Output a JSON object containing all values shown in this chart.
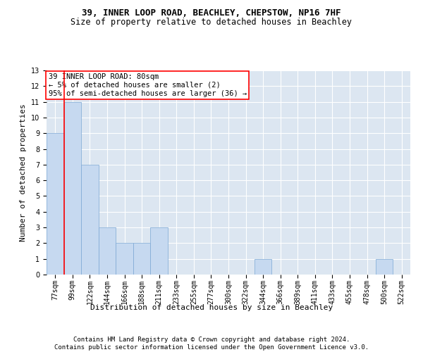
{
  "title1": "39, INNER LOOP ROAD, BEACHLEY, CHEPSTOW, NP16 7HF",
  "title2": "Size of property relative to detached houses in Beachley",
  "xlabel": "Distribution of detached houses by size in Beachley",
  "ylabel": "Number of detached properties",
  "categories": [
    "77sqm",
    "99sqm",
    "122sqm",
    "144sqm",
    "166sqm",
    "188sqm",
    "211sqm",
    "233sqm",
    "255sqm",
    "277sqm",
    "300sqm",
    "322sqm",
    "344sqm",
    "366sqm",
    "389sqm",
    "411sqm",
    "433sqm",
    "455sqm",
    "478sqm",
    "500sqm",
    "522sqm"
  ],
  "values": [
    9,
    11,
    7,
    3,
    2,
    2,
    3,
    0,
    0,
    0,
    0,
    0,
    1,
    0,
    0,
    0,
    0,
    0,
    0,
    1,
    0
  ],
  "bar_color": "#c6d9f0",
  "bar_edge_color": "#7ba7d4",
  "annotation_box_text": "39 INNER LOOP ROAD: 80sqm\n← 5% of detached houses are smaller (2)\n95% of semi-detached houses are larger (36) →",
  "red_line_x": 0.5,
  "ylim": [
    0,
    13
  ],
  "yticks": [
    0,
    1,
    2,
    3,
    4,
    5,
    6,
    7,
    8,
    9,
    10,
    11,
    12,
    13
  ],
  "footer_text": "Contains HM Land Registry data © Crown copyright and database right 2024.\nContains public sector information licensed under the Open Government Licence v3.0.",
  "background_color": "#dce6f1",
  "grid_color": "#ffffff",
  "title_fontsize": 9,
  "subtitle_fontsize": 8.5,
  "axis_label_fontsize": 8,
  "tick_fontsize": 7,
  "footer_fontsize": 6.5,
  "annotation_fontsize": 7.5
}
